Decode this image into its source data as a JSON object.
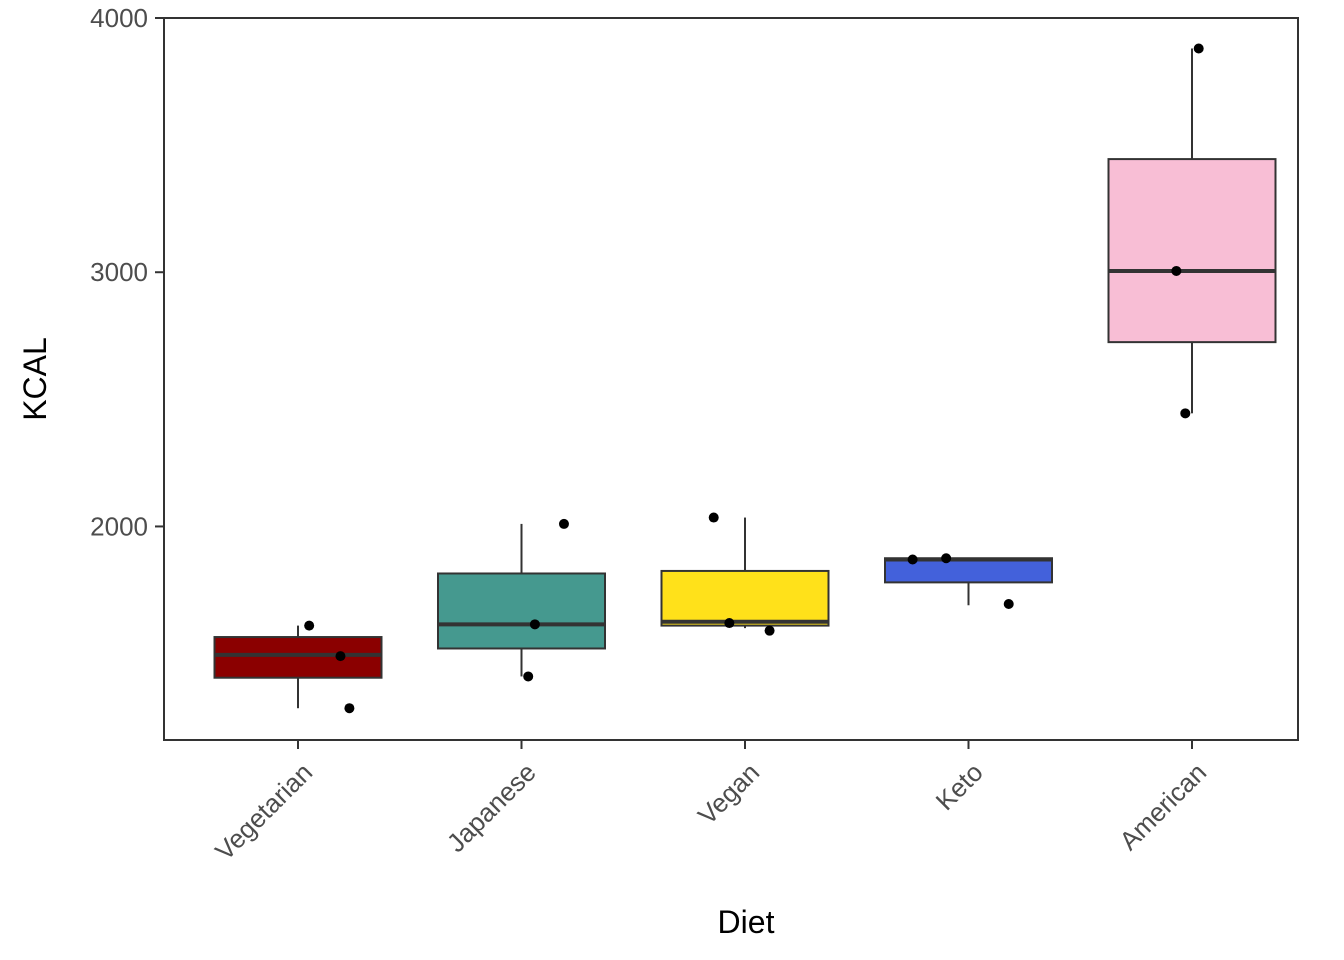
{
  "chart_data": {
    "type": "boxplot",
    "title": "",
    "xlabel": "Diet",
    "ylabel": "KCAL",
    "ylim": [
      1160,
      4000
    ],
    "yticks": [
      2000,
      3000,
      4000
    ],
    "categories": [
      "Vegetarian",
      "Japanese",
      "Vegan",
      "Keto",
      "American"
    ],
    "boxes": [
      {
        "name": "Vegetarian",
        "color": "#8B0000",
        "whisker_low": 1285,
        "q1": 1405,
        "median": 1495,
        "q3": 1565,
        "whisker_high": 1610
      },
      {
        "name": "Japanese",
        "color": "#45998F",
        "whisker_low": 1410,
        "q1": 1520,
        "median": 1615,
        "q3": 1815,
        "whisker_high": 2010
      },
      {
        "name": "Vegan",
        "color": "#FFE11A",
        "whisker_low": 1600,
        "q1": 1610,
        "median": 1625,
        "q3": 1825,
        "whisker_high": 2035
      },
      {
        "name": "Keto",
        "color": "#4361DB",
        "whisker_low": 1690,
        "q1": 1780,
        "median": 1870,
        "q3": 1875,
        "whisker_high": 1875
      },
      {
        "name": "American",
        "color": "#F8BED5",
        "whisker_low": 2445,
        "q1": 2725,
        "median": 3005,
        "q3": 3445,
        "whisker_high": 3880
      }
    ],
    "points": [
      {
        "category": "Vegetarian",
        "jitter": 0.05,
        "value": 1610
      },
      {
        "category": "Vegetarian",
        "jitter": 0.19,
        "value": 1490
      },
      {
        "category": "Vegetarian",
        "jitter": 0.23,
        "value": 1285
      },
      {
        "category": "Japanese",
        "jitter": 0.19,
        "value": 2010
      },
      {
        "category": "Japanese",
        "jitter": 0.06,
        "value": 1615
      },
      {
        "category": "Japanese",
        "jitter": 0.03,
        "value": 1410
      },
      {
        "category": "Vegan",
        "jitter": -0.14,
        "value": 2035
      },
      {
        "category": "Vegan",
        "jitter": -0.07,
        "value": 1620
      },
      {
        "category": "Vegan",
        "jitter": 0.11,
        "value": 1590
      },
      {
        "category": "Keto",
        "jitter": -0.25,
        "value": 1870
      },
      {
        "category": "Keto",
        "jitter": -0.1,
        "value": 1875
      },
      {
        "category": "Keto",
        "jitter": 0.18,
        "value": 1695
      },
      {
        "category": "American",
        "jitter": 0.03,
        "value": 3880
      },
      {
        "category": "American",
        "jitter": -0.07,
        "value": 3005
      },
      {
        "category": "American",
        "jitter": -0.03,
        "value": 2445
      }
    ]
  }
}
